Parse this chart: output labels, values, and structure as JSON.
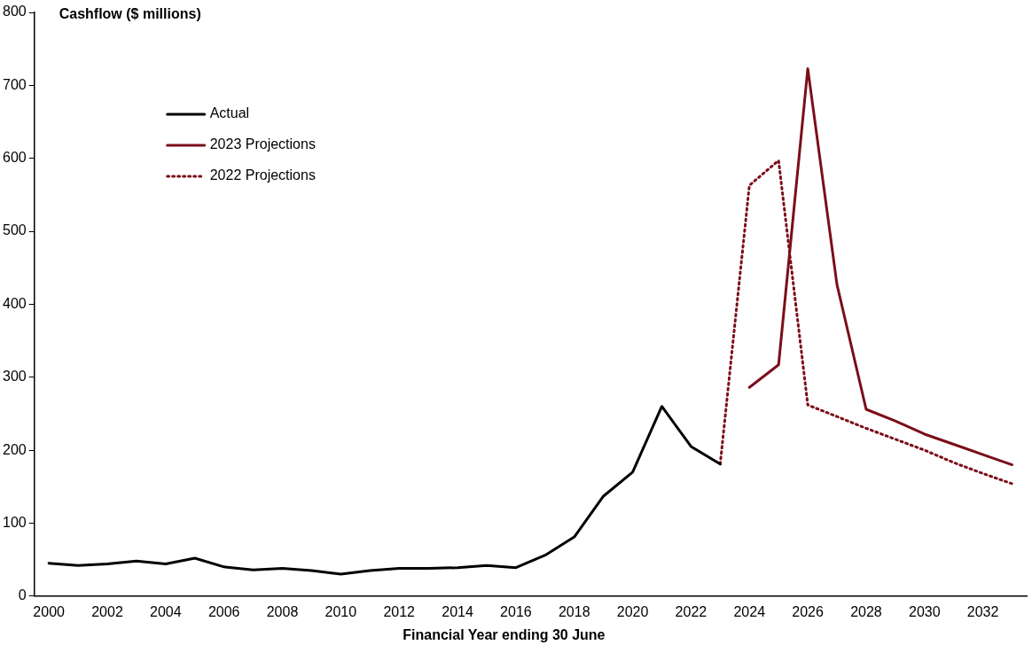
{
  "chart_data": {
    "type": "line",
    "xlabel": "Financial Year ending 30 June",
    "ylabel": "Cashflow ($ millions)",
    "categories": [
      "2000",
      null,
      "2002",
      null,
      "2004",
      null,
      "2006",
      null,
      "2008",
      null,
      "2010",
      null,
      "2012",
      null,
      "2014",
      null,
      "2016",
      null,
      "2018",
      null,
      "2020",
      null,
      "2022",
      null,
      "2024",
      null,
      "2026",
      null,
      "2028",
      null,
      "2030",
      null,
      "2032",
      null
    ],
    "series": [
      {
        "name": "Actual",
        "color": "#000000",
        "line_style": "solid",
        "values": [
          45,
          42,
          44,
          48,
          44,
          52,
          40,
          36,
          38,
          35,
          30,
          35,
          38,
          38,
          39,
          42,
          39,
          56,
          81,
          137,
          170,
          260,
          205,
          181,
          null,
          null,
          null,
          null,
          null,
          null,
          null,
          null,
          null,
          null
        ]
      },
      {
        "name": "2023 Projections",
        "color": "#7b0e1a",
        "line_style": "solid",
        "values": [
          null,
          null,
          null,
          null,
          null,
          null,
          null,
          null,
          null,
          null,
          null,
          null,
          null,
          null,
          null,
          null,
          null,
          null,
          null,
          null,
          null,
          null,
          null,
          null,
          286,
          317,
          723,
          427,
          256,
          240,
          222,
          208,
          194,
          180
        ]
      },
      {
        "name": "2022 Projections",
        "color": "#7b0e1a",
        "line_style": "dotted",
        "values": [
          null,
          null,
          null,
          null,
          null,
          null,
          null,
          null,
          null,
          null,
          null,
          null,
          null,
          null,
          null,
          null,
          null,
          null,
          null,
          null,
          null,
          null,
          null,
          181,
          563,
          597,
          262,
          246,
          230,
          215,
          200,
          183,
          168,
          154
        ]
      }
    ],
    "ylim": [
      0,
      800
    ],
    "yticks": [
      0,
      100,
      200,
      300,
      400,
      500,
      600,
      700,
      800
    ],
    "grid": false,
    "legend": "top left",
    "marker": "none"
  }
}
